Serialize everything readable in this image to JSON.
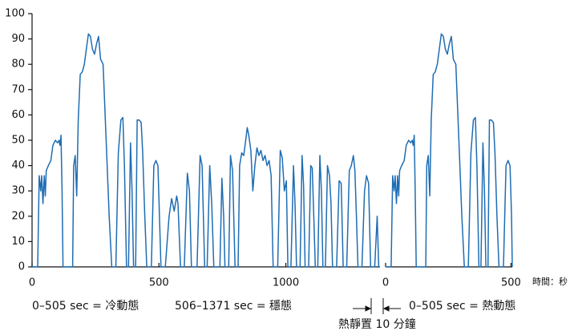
{
  "chart_data": [
    {
      "type": "line",
      "ylim": [
        0,
        100
      ],
      "yticks": [
        0,
        10,
        20,
        30,
        40,
        50,
        60,
        70,
        80,
        90,
        100
      ],
      "xlim": [
        0,
        1371
      ],
      "xticks": [
        0,
        500,
        1000
      ],
      "annotations": [
        "0–505 sec = 冷動態",
        "506–1371 sec = 穩態"
      ],
      "series": [
        {
          "color": "#1f6db3",
          "x": [
            0,
            22,
            28,
            34,
            38,
            43,
            48,
            52,
            56,
            64,
            74,
            82,
            92,
            100,
            106,
            110,
            114,
            118,
            122,
            160,
            164,
            170,
            176,
            182,
            190,
            198,
            206,
            214,
            222,
            230,
            238,
            246,
            254,
            262,
            270,
            280,
            292,
            304,
            314,
            330,
            340,
            350,
            358,
            364,
            372,
            380,
            388,
            394,
            400,
            408,
            414,
            422,
            430,
            436,
            444,
            452,
            470,
            480,
            488,
            496,
            502,
            508,
            525,
            540,
            550,
            560,
            570,
            575,
            585,
            600,
            612,
            620,
            628,
            650,
            662,
            670,
            680,
            690,
            700,
            708,
            716,
            740,
            748,
            755,
            760,
            775,
            782,
            790,
            800,
            812,
            818,
            826,
            834,
            842,
            848,
            854,
            862,
            870,
            878,
            886,
            894,
            902,
            910,
            918,
            926,
            934,
            942,
            950,
            968,
            978,
            986,
            994,
            1002,
            1008,
            1020,
            1030,
            1036,
            1042,
            1056,
            1064,
            1070,
            1076,
            1090,
            1098,
            1104,
            1110,
            1116,
            1126,
            1134,
            1140,
            1146,
            1156,
            1164,
            1172,
            1178,
            1184,
            1200,
            1210,
            1218,
            1226,
            1240,
            1250,
            1258,
            1266,
            1272,
            1278,
            1284,
            1300,
            1310,
            1318,
            1326,
            1334,
            1350,
            1360,
            1366,
            1371
          ],
          "values": [
            0,
            0,
            36,
            30,
            36,
            25,
            36,
            28,
            38,
            40,
            42,
            48,
            50,
            49,
            50,
            48,
            52,
            30,
            0,
            0,
            40,
            44,
            28,
            58,
            76,
            77,
            80,
            86,
            92,
            91,
            86,
            84,
            88,
            91,
            82,
            80,
            50,
            20,
            0,
            0,
            45,
            58,
            59,
            40,
            0,
            0,
            49,
            30,
            0,
            0,
            58,
            58,
            57,
            45,
            20,
            0,
            0,
            40,
            42,
            40,
            20,
            0,
            0,
            20,
            27,
            22,
            28,
            25,
            0,
            0,
            37,
            30,
            0,
            0,
            44,
            40,
            0,
            0,
            40,
            25,
            0,
            0,
            35,
            20,
            0,
            0,
            44,
            38,
            0,
            0,
            40,
            45,
            44,
            50,
            55,
            52,
            46,
            30,
            40,
            47,
            44,
            46,
            42,
            44,
            40,
            42,
            36,
            0,
            0,
            46,
            43,
            30,
            34,
            0,
            0,
            40,
            25,
            0,
            0,
            44,
            32,
            0,
            0,
            40,
            39,
            20,
            0,
            0,
            44,
            30,
            0,
            0,
            40,
            36,
            25,
            0,
            0,
            34,
            33,
            0,
            0,
            38,
            40,
            44,
            38,
            20,
            0,
            0,
            30,
            36,
            33,
            0,
            0,
            20,
            0,
            0
          ]
        }
      ]
    },
    {
      "type": "line",
      "ylim": [
        0,
        100
      ],
      "xlim": [
        0,
        505
      ],
      "xticks": [
        0,
        500
      ],
      "xlabel": "時間：秒",
      "annotations": [
        "熱靜置 10 分鐘",
        "0–505 sec = 熱動態"
      ],
      "series": [
        {
          "color": "#1f6db3",
          "x": [
            0,
            22,
            28,
            34,
            38,
            43,
            48,
            52,
            56,
            64,
            74,
            82,
            92,
            100,
            106,
            110,
            114,
            118,
            122,
            160,
            164,
            170,
            176,
            182,
            190,
            198,
            206,
            214,
            222,
            230,
            238,
            246,
            254,
            262,
            270,
            280,
            292,
            304,
            314,
            330,
            340,
            350,
            358,
            364,
            372,
            380,
            388,
            394,
            400,
            408,
            414,
            422,
            430,
            436,
            444,
            452,
            470,
            480,
            488,
            496,
            502,
            505
          ],
          "values": [
            0,
            0,
            36,
            30,
            36,
            25,
            36,
            28,
            38,
            40,
            42,
            48,
            50,
            49,
            50,
            48,
            52,
            30,
            0,
            0,
            40,
            44,
            28,
            58,
            76,
            77,
            80,
            86,
            92,
            91,
            86,
            84,
            88,
            91,
            82,
            80,
            50,
            20,
            0,
            0,
            45,
            58,
            59,
            40,
            0,
            0,
            49,
            30,
            0,
            0,
            58,
            58,
            57,
            45,
            20,
            0,
            0,
            40,
            42,
            40,
            20,
            0
          ]
        }
      ]
    }
  ]
}
